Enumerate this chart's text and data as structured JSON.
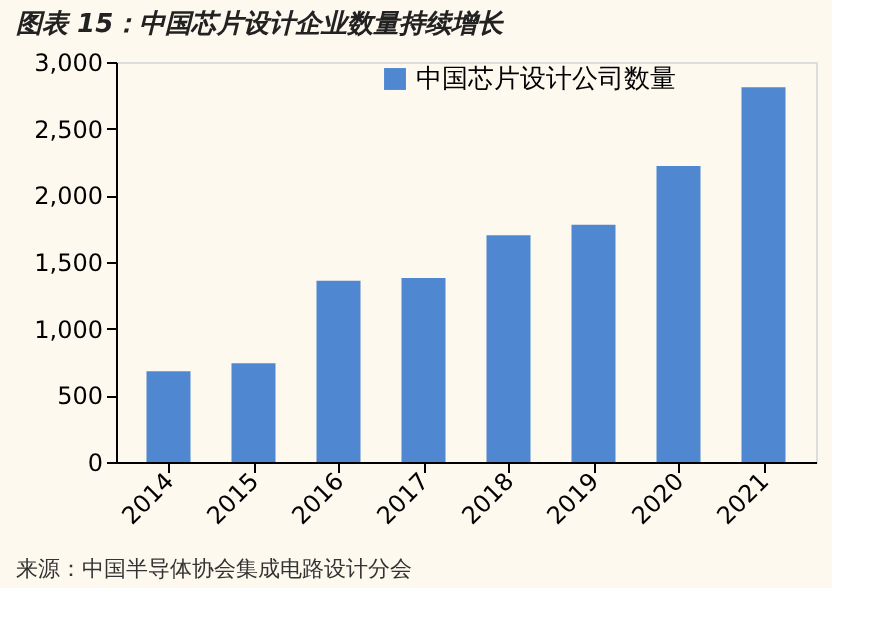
{
  "chart_data": {
    "type": "bar",
    "title": "图表 15：中国芯片设计企业数量持续增长",
    "categories": [
      "2014",
      "2015",
      "2016",
      "2017",
      "2018",
      "2019",
      "2020",
      "2021"
    ],
    "series": [
      {
        "name": "中国芯片设计公司数量",
        "color": "#4f88d0",
        "values": [
          680,
          740,
          1360,
          1380,
          1700,
          1780,
          2220,
          2810
        ]
      }
    ],
    "ylim": [
      0,
      3000
    ],
    "yticks": [
      0,
      500,
      {
        "value": 1000,
        "label": "1,000"
      },
      {
        "value": 1500,
        "label": "1,500"
      },
      {
        "value": 2000,
        "label": "2,000"
      },
      {
        "value": 2500,
        "label": "2,500"
      },
      {
        "value": 3000,
        "label": "3,000"
      }
    ],
    "grid": false,
    "legend": "top",
    "annotations": [
      "来源：中国半导体协会集成电路设计分会"
    ]
  }
}
